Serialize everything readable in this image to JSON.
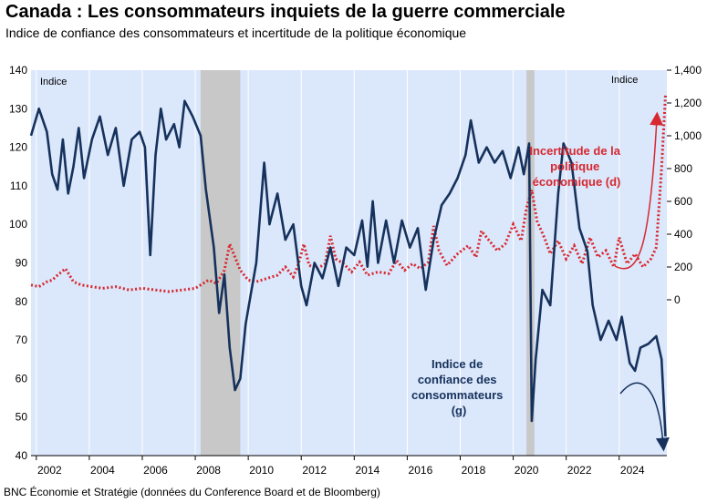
{
  "title": "Canada : Les consommateurs inquiets de la guerre commerciale",
  "subtitle": "Indice de confiance des consommateurs et incertitude de la politique économique",
  "source": "BNC Économie et Stratégie (données du Conference Board et de Bloomberg)",
  "chart_data": {
    "type": "line",
    "x_range": [
      2001.3,
      2025.3
    ],
    "x_ticks": [
      "2002",
      "2004",
      "2006",
      "2008",
      "2010",
      "2012",
      "2014",
      "2016",
      "2018",
      "2020",
      "2022",
      "2024"
    ],
    "left_axis": {
      "label": "Indice",
      "ylim": [
        40,
        140
      ],
      "ticks": [
        "40",
        "50",
        "60",
        "70",
        "80",
        "90",
        "100",
        "110",
        "120",
        "130",
        "140"
      ]
    },
    "right_axis": {
      "label": "Indice",
      "ylim": [
        -950,
        1400
      ],
      "ticks": [
        "0",
        "200",
        "400",
        "600",
        "800",
        "1,000",
        "1,200",
        "1,400"
      ]
    },
    "shaded_periods": [
      [
        2007.7,
        2009.2
      ],
      [
        2020.0,
        2020.3
      ]
    ],
    "grid": false,
    "background_color": "#dbe7fb",
    "shade_color": "#c8c8c8",
    "series": [
      {
        "name": "Indice de confiance des consommateurs (g)",
        "axis": "left",
        "color": "#16325c",
        "style": "solid",
        "points": [
          [
            2001.3,
            123
          ],
          [
            2001.6,
            130
          ],
          [
            2001.9,
            124
          ],
          [
            2002.1,
            113
          ],
          [
            2002.3,
            109
          ],
          [
            2002.5,
            122
          ],
          [
            2002.7,
            108
          ],
          [
            2002.9,
            115
          ],
          [
            2003.1,
            125
          ],
          [
            2003.3,
            112
          ],
          [
            2003.6,
            122
          ],
          [
            2003.9,
            128
          ],
          [
            2004.2,
            118
          ],
          [
            2004.5,
            125
          ],
          [
            2004.8,
            110
          ],
          [
            2005.1,
            122
          ],
          [
            2005.4,
            124
          ],
          [
            2005.6,
            120
          ],
          [
            2005.8,
            92
          ],
          [
            2006.0,
            118
          ],
          [
            2006.2,
            130
          ],
          [
            2006.4,
            122
          ],
          [
            2006.7,
            126
          ],
          [
            2006.9,
            120
          ],
          [
            2007.1,
            132
          ],
          [
            2007.4,
            128
          ],
          [
            2007.7,
            123
          ],
          [
            2007.9,
            109
          ],
          [
            2008.2,
            94
          ],
          [
            2008.4,
            77
          ],
          [
            2008.6,
            87
          ],
          [
            2008.8,
            68
          ],
          [
            2009.0,
            57
          ],
          [
            2009.2,
            60
          ],
          [
            2009.4,
            74
          ],
          [
            2009.6,
            82
          ],
          [
            2009.8,
            90
          ],
          [
            2010.1,
            116
          ],
          [
            2010.3,
            100
          ],
          [
            2010.6,
            108
          ],
          [
            2010.9,
            96
          ],
          [
            2011.2,
            100
          ],
          [
            2011.5,
            84
          ],
          [
            2011.7,
            79
          ],
          [
            2012.0,
            90
          ],
          [
            2012.3,
            86
          ],
          [
            2012.6,
            94
          ],
          [
            2012.9,
            84
          ],
          [
            2013.2,
            94
          ],
          [
            2013.5,
            92
          ],
          [
            2013.8,
            101
          ],
          [
            2014.0,
            89
          ],
          [
            2014.2,
            106
          ],
          [
            2014.4,
            90
          ],
          [
            2014.7,
            101
          ],
          [
            2015.0,
            90
          ],
          [
            2015.3,
            101
          ],
          [
            2015.6,
            94
          ],
          [
            2015.9,
            99
          ],
          [
            2016.2,
            83
          ],
          [
            2016.5,
            96
          ],
          [
            2016.8,
            105
          ],
          [
            2017.1,
            108
          ],
          [
            2017.4,
            112
          ],
          [
            2017.7,
            118
          ],
          [
            2017.9,
            127
          ],
          [
            2018.2,
            116
          ],
          [
            2018.5,
            120
          ],
          [
            2018.8,
            116
          ],
          [
            2019.1,
            119
          ],
          [
            2019.4,
            112
          ],
          [
            2019.7,
            120
          ],
          [
            2019.9,
            113
          ],
          [
            2020.1,
            121
          ],
          [
            2020.2,
            49
          ],
          [
            2020.35,
            65
          ],
          [
            2020.6,
            83
          ],
          [
            2020.9,
            79
          ],
          [
            2021.2,
            108
          ],
          [
            2021.4,
            121
          ],
          [
            2021.7,
            116
          ],
          [
            2022.0,
            99
          ],
          [
            2022.3,
            93
          ],
          [
            2022.5,
            79
          ],
          [
            2022.8,
            70
          ],
          [
            2023.1,
            75
          ],
          [
            2023.4,
            70
          ],
          [
            2023.6,
            76
          ],
          [
            2023.9,
            64
          ],
          [
            2024.1,
            62
          ],
          [
            2024.3,
            68
          ],
          [
            2024.6,
            69
          ],
          [
            2024.9,
            71
          ],
          [
            2025.1,
            65
          ],
          [
            2025.25,
            45
          ]
        ]
      },
      {
        "name": "Incertitude de la politique économique (d)",
        "axis": "right",
        "color": "#d7282f",
        "style": "dotted",
        "points": [
          [
            2001.3,
            90
          ],
          [
            2001.6,
            80
          ],
          [
            2001.9,
            110
          ],
          [
            2002.1,
            120
          ],
          [
            2002.3,
            150
          ],
          [
            2002.6,
            190
          ],
          [
            2002.9,
            110
          ],
          [
            2003.2,
            90
          ],
          [
            2003.6,
            80
          ],
          [
            2004.0,
            70
          ],
          [
            2004.5,
            80
          ],
          [
            2005.0,
            60
          ],
          [
            2005.5,
            70
          ],
          [
            2006.0,
            60
          ],
          [
            2006.5,
            50
          ],
          [
            2007.0,
            60
          ],
          [
            2007.5,
            70
          ],
          [
            2008.0,
            120
          ],
          [
            2008.3,
            100
          ],
          [
            2008.6,
            180
          ],
          [
            2008.8,
            340
          ],
          [
            2009.0,
            260
          ],
          [
            2009.2,
            180
          ],
          [
            2009.5,
            120
          ],
          [
            2009.8,
            110
          ],
          [
            2010.2,
            130
          ],
          [
            2010.6,
            150
          ],
          [
            2010.9,
            200
          ],
          [
            2011.2,
            140
          ],
          [
            2011.4,
            220
          ],
          [
            2011.6,
            340
          ],
          [
            2011.8,
            210
          ],
          [
            2012.1,
            190
          ],
          [
            2012.4,
            220
          ],
          [
            2012.6,
            390
          ],
          [
            2012.8,
            250
          ],
          [
            2013.1,
            220
          ],
          [
            2013.4,
            170
          ],
          [
            2013.7,
            230
          ],
          [
            2014.0,
            150
          ],
          [
            2014.4,
            170
          ],
          [
            2014.8,
            160
          ],
          [
            2015.1,
            240
          ],
          [
            2015.4,
            180
          ],
          [
            2015.7,
            220
          ],
          [
            2016.0,
            190
          ],
          [
            2016.3,
            230
          ],
          [
            2016.5,
            450
          ],
          [
            2016.7,
            300
          ],
          [
            2017.0,
            210
          ],
          [
            2017.4,
            280
          ],
          [
            2017.8,
            330
          ],
          [
            2018.1,
            260
          ],
          [
            2018.3,
            420
          ],
          [
            2018.6,
            360
          ],
          [
            2018.9,
            300
          ],
          [
            2019.2,
            340
          ],
          [
            2019.5,
            460
          ],
          [
            2019.8,
            360
          ],
          [
            2020.0,
            560
          ],
          [
            2020.2,
            670
          ],
          [
            2020.4,
            480
          ],
          [
            2020.7,
            370
          ],
          [
            2020.9,
            280
          ],
          [
            2021.2,
            360
          ],
          [
            2021.5,
            250
          ],
          [
            2021.8,
            330
          ],
          [
            2022.1,
            220
          ],
          [
            2022.4,
            380
          ],
          [
            2022.7,
            260
          ],
          [
            2023.0,
            300
          ],
          [
            2023.3,
            200
          ],
          [
            2023.5,
            380
          ],
          [
            2023.8,
            220
          ],
          [
            2024.1,
            280
          ],
          [
            2024.4,
            200
          ],
          [
            2024.7,
            250
          ],
          [
            2024.9,
            320
          ],
          [
            2025.1,
            800
          ],
          [
            2025.25,
            1250
          ]
        ]
      }
    ],
    "annotations": {
      "red_label": [
        "Incertitude de la",
        "politique",
        "économique (d)"
      ],
      "blue_label": [
        "Indice de",
        "confiance des",
        "consommateurs",
        "(g)"
      ]
    }
  }
}
